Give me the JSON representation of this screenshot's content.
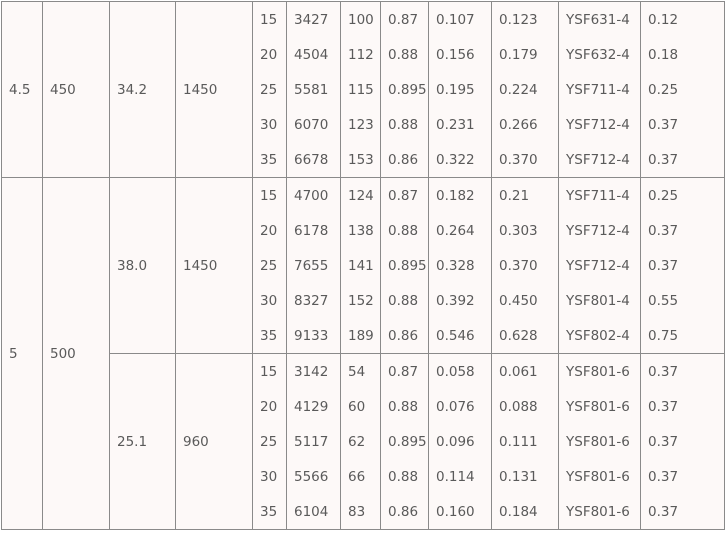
{
  "groups": [
    {
      "power": "4.5",
      "flow": "450",
      "subgroups": [
        {
          "head": "34.2",
          "speed": "1450",
          "rows": [
            [
              "15",
              "3427",
              "100",
              "0.87",
              "0.107",
              "0.123",
              "YSF631-4",
              "0.12"
            ],
            [
              "20",
              "4504",
              "112",
              "0.88",
              "0.156",
              "0.179",
              "YSF632-4",
              "0.18"
            ],
            [
              "25",
              "5581",
              "115",
              "0.895",
              "0.195",
              "0.224",
              "YSF711-4",
              "0.25"
            ],
            [
              "30",
              "6070",
              "123",
              "0.88",
              "0.231",
              "0.266",
              "YSF712-4",
              "0.37"
            ],
            [
              "35",
              "6678",
              "153",
              "0.86",
              "0.322",
              "0.370",
              "YSF712-4",
              "0.37"
            ]
          ]
        }
      ]
    },
    {
      "power": "5",
      "flow": "500",
      "subgroups": [
        {
          "head": "38.0",
          "speed": "1450",
          "rows": [
            [
              "15",
              "4700",
              "124",
              "0.87",
              "0.182",
              "0.21",
              "YSF711-4",
              "0.25"
            ],
            [
              "20",
              "6178",
              "138",
              "0.88",
              "0.264",
              "0.303",
              "YSF712-4",
              "0.37"
            ],
            [
              "25",
              "7655",
              "141",
              "0.895",
              "0.328",
              "0.370",
              "YSF712-4",
              "0.37"
            ],
            [
              "30",
              "8327",
              "152",
              "0.88",
              "0.392",
              "0.450",
              "YSF801-4",
              "0.55"
            ],
            [
              "35",
              "9133",
              "189",
              "0.86",
              "0.546",
              "0.628",
              "YSF802-4",
              "0.75"
            ]
          ]
        },
        {
          "head": "25.1",
          "speed": "960",
          "rows": [
            [
              "15",
              "3142",
              "54",
              "0.87",
              "0.058",
              "0.061",
              "YSF801-6",
              "0.37"
            ],
            [
              "20",
              "4129",
              "60",
              "0.88",
              "0.076",
              "0.088",
              "YSF801-6",
              "0.37"
            ],
            [
              "25",
              "5117",
              "62",
              "0.895",
              "0.096",
              "0.111",
              "YSF801-6",
              "0.37"
            ],
            [
              "30",
              "5566",
              "66",
              "0.88",
              "0.114",
              "0.131",
              "YSF801-6",
              "0.37"
            ],
            [
              "35",
              "6104",
              "83",
              "0.86",
              "0.160",
              "0.184",
              "YSF801-6",
              "0.37"
            ]
          ]
        }
      ]
    }
  ]
}
